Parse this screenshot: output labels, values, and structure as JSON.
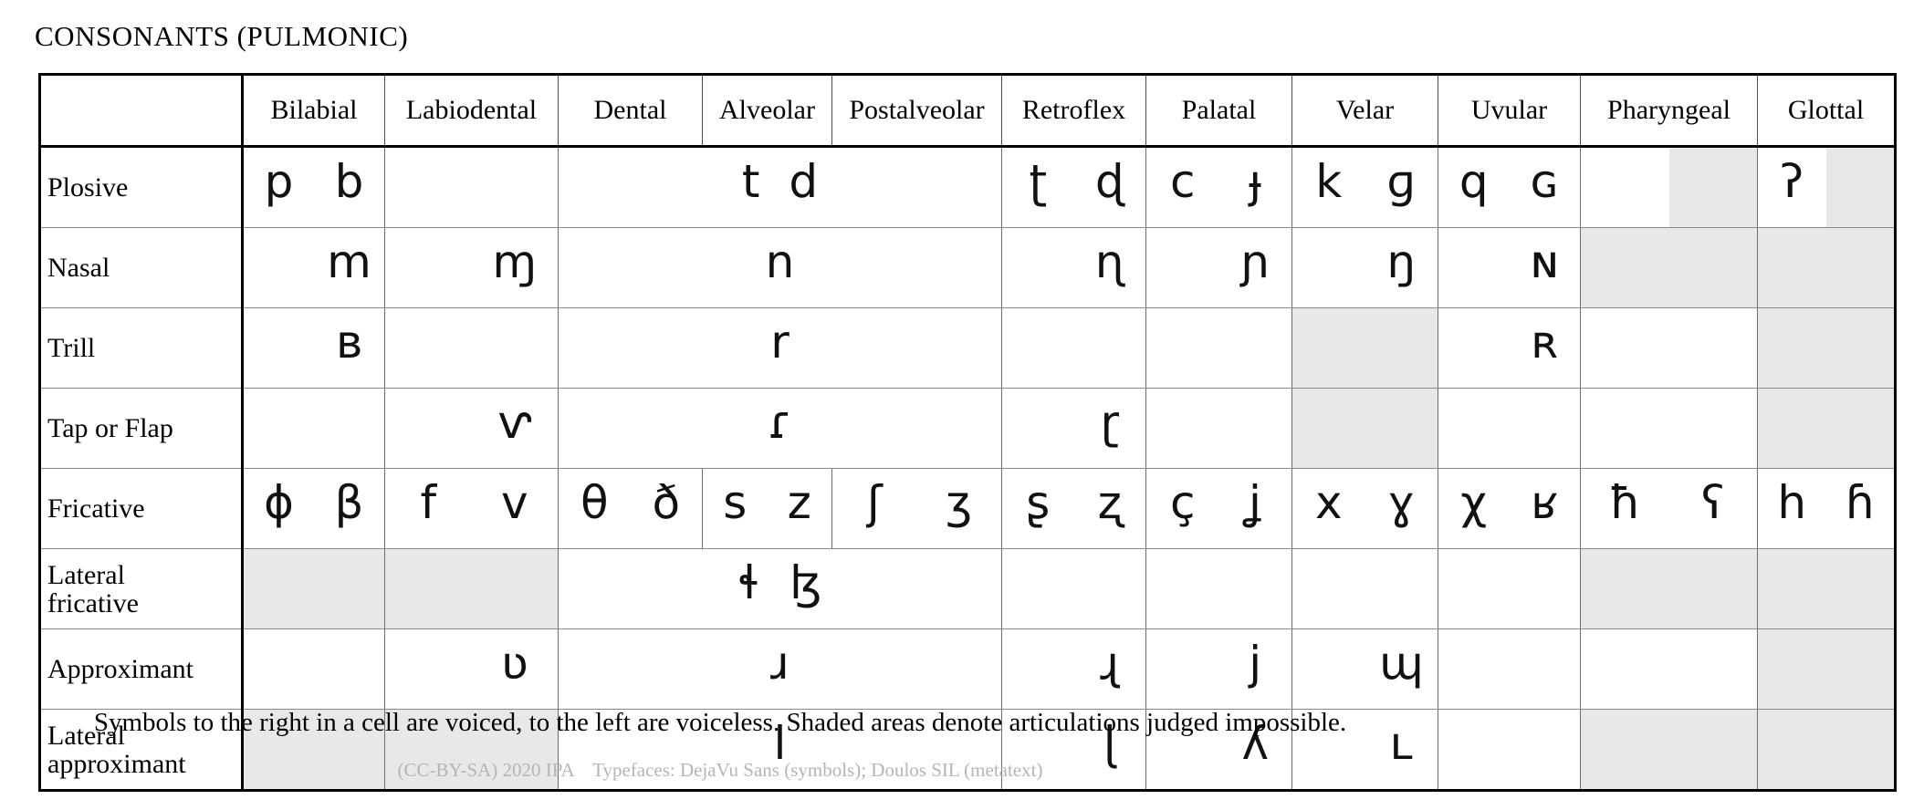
{
  "title": "CONSONANTS (PULMONIC)",
  "note": "Symbols to the right in a cell are voiced, to the left are voiceless. Shaded areas denote articulations judged impossible.",
  "credit": "(CC-BY-SA) 2020 IPA    Typefaces: DejaVu Sans (symbols); Doulos SIL (metatext)",
  "colors": {
    "shaded_cell": "#e8e8e8",
    "symbol_text": "#111111",
    "credit_text": "#b5b5b5",
    "border": "#000000"
  },
  "table": {
    "columns": [
      "Bilabial",
      "Labiodental",
      "Dental",
      "Alveolar",
      "Postalveolar",
      "Retroflex",
      "Palatal",
      "Velar",
      "Uvular",
      "Pharyngeal",
      "Glottal"
    ],
    "rows": [
      {
        "label": "Plosive",
        "cells": [
          {
            "col": "bilabial",
            "voiceless": "p",
            "voiced": "b"
          },
          {
            "col": "labiodental"
          },
          {
            "col": "dental-postalveolar",
            "span": 3,
            "center": true,
            "voiceless": "t",
            "voiced": "d"
          },
          {
            "col": "retroflex",
            "voiceless": "ʈ",
            "voiced": "ɖ"
          },
          {
            "col": "palatal",
            "voiceless": "c",
            "voiced": "ɟ"
          },
          {
            "col": "velar",
            "voiceless": "k",
            "voiced": "ɡ"
          },
          {
            "col": "uvular",
            "voiceless": "q",
            "voiced": "ɢ"
          },
          {
            "col": "pharyngeal",
            "shade": "right"
          },
          {
            "col": "glottal",
            "voiceless": "ʔ",
            "shade": "right"
          }
        ]
      },
      {
        "label": "Nasal",
        "cells": [
          {
            "col": "bilabial",
            "voiced": "m"
          },
          {
            "col": "labiodental",
            "voiced": "ɱ"
          },
          {
            "col": "dental-postalveolar",
            "span": 3,
            "center": true,
            "voiced": "n"
          },
          {
            "col": "retroflex",
            "voiced": "ɳ"
          },
          {
            "col": "palatal",
            "voiced": "ɲ"
          },
          {
            "col": "velar",
            "voiced": "ŋ"
          },
          {
            "col": "uvular",
            "voiced": "ɴ"
          },
          {
            "col": "pharyngeal",
            "shade": "full"
          },
          {
            "col": "glottal",
            "shade": "full"
          }
        ]
      },
      {
        "label": "Trill",
        "cells": [
          {
            "col": "bilabial",
            "voiced": "ʙ"
          },
          {
            "col": "labiodental"
          },
          {
            "col": "dental-postalveolar",
            "span": 3,
            "center": true,
            "voiced": "r"
          },
          {
            "col": "retroflex"
          },
          {
            "col": "palatal"
          },
          {
            "col": "velar",
            "shade": "full"
          },
          {
            "col": "uvular",
            "voiced": "ʀ"
          },
          {
            "col": "pharyngeal"
          },
          {
            "col": "glottal",
            "shade": "full"
          }
        ]
      },
      {
        "label": "Tap or Flap",
        "cells": [
          {
            "col": "bilabial"
          },
          {
            "col": "labiodental",
            "voiced": "ⱱ"
          },
          {
            "col": "dental-postalveolar",
            "span": 3,
            "center": true,
            "voiced": "ɾ"
          },
          {
            "col": "retroflex",
            "voiced": "ɽ"
          },
          {
            "col": "palatal"
          },
          {
            "col": "velar",
            "shade": "full"
          },
          {
            "col": "uvular"
          },
          {
            "col": "pharyngeal"
          },
          {
            "col": "glottal",
            "shade": "full"
          }
        ]
      },
      {
        "label": "Fricative",
        "cells": [
          {
            "col": "bilabial",
            "voiceless": "ɸ",
            "voiced": "β"
          },
          {
            "col": "labiodental",
            "voiceless": "f",
            "voiced": "v"
          },
          {
            "col": "dental",
            "voiceless": "θ",
            "voiced": "ð"
          },
          {
            "col": "alveolar",
            "voiceless": "s",
            "voiced": "z"
          },
          {
            "col": "postalveolar",
            "voiceless": "ʃ",
            "voiced": "ʒ"
          },
          {
            "col": "retroflex",
            "voiceless": "ʂ",
            "voiced": "ʐ"
          },
          {
            "col": "palatal",
            "voiceless": "ç",
            "voiced": "ʝ"
          },
          {
            "col": "velar",
            "voiceless": "x",
            "voiced": "ɣ"
          },
          {
            "col": "uvular",
            "voiceless": "χ",
            "voiced": "ʁ"
          },
          {
            "col": "pharyngeal",
            "voiceless": "ħ",
            "voiced": "ʕ"
          },
          {
            "col": "glottal",
            "voiceless": "h",
            "voiced": "ɦ"
          }
        ]
      },
      {
        "label": "Lateral\nfricative",
        "cells": [
          {
            "col": "bilabial",
            "shade": "full"
          },
          {
            "col": "labiodental",
            "shade": "full"
          },
          {
            "col": "dental-postalveolar",
            "span": 3,
            "center": true,
            "voiceless": "ɬ",
            "voiced": "ɮ"
          },
          {
            "col": "retroflex"
          },
          {
            "col": "palatal"
          },
          {
            "col": "velar"
          },
          {
            "col": "uvular"
          },
          {
            "col": "pharyngeal",
            "shade": "full"
          },
          {
            "col": "glottal",
            "shade": "full"
          }
        ]
      },
      {
        "label": "Approximant",
        "cells": [
          {
            "col": "bilabial"
          },
          {
            "col": "labiodental",
            "voiced": "ʋ"
          },
          {
            "col": "dental-postalveolar",
            "span": 3,
            "center": true,
            "voiced": "ɹ"
          },
          {
            "col": "retroflex",
            "voiced": "ɻ"
          },
          {
            "col": "palatal",
            "voiced": "j"
          },
          {
            "col": "velar",
            "voiced": "ɰ"
          },
          {
            "col": "uvular"
          },
          {
            "col": "pharyngeal"
          },
          {
            "col": "glottal",
            "shade": "full"
          }
        ]
      },
      {
        "label": "Lateral\napproximant",
        "cells": [
          {
            "col": "bilabial",
            "shade": "full"
          },
          {
            "col": "labiodental",
            "shade": "full"
          },
          {
            "col": "dental-postalveolar",
            "span": 3,
            "center": true,
            "voiced": "l"
          },
          {
            "col": "retroflex",
            "voiced": "ɭ"
          },
          {
            "col": "palatal",
            "voiced": "ʎ"
          },
          {
            "col": "velar",
            "voiced": "ʟ"
          },
          {
            "col": "uvular"
          },
          {
            "col": "pharyngeal",
            "shade": "full"
          },
          {
            "col": "glottal",
            "shade": "full"
          }
        ]
      }
    ]
  }
}
